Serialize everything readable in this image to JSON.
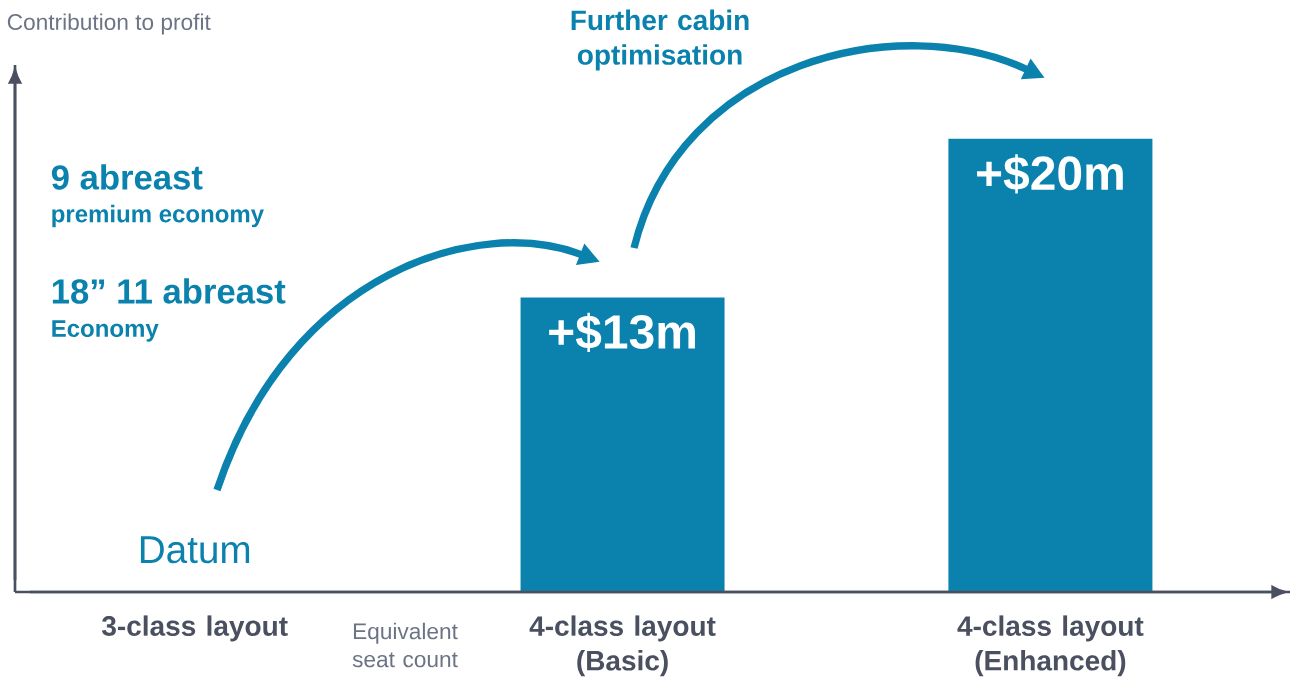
{
  "chart_data": {
    "type": "bar",
    "ylabel": "Contribution to profit",
    "categories": [
      "3-class layout",
      "4-class layout (Basic)",
      "4-class layout (Enhanced)"
    ],
    "values": [
      0,
      13,
      20
    ],
    "value_labels": [
      "Datum",
      "+$13m",
      "+$20m"
    ],
    "color": "#0a82ad",
    "annotations": [
      "Further cabin optimisation",
      "9 abreast",
      "premium economy",
      "18” 11 abreast",
      "Economy",
      "Equivalent seat count"
    ]
  }
}
